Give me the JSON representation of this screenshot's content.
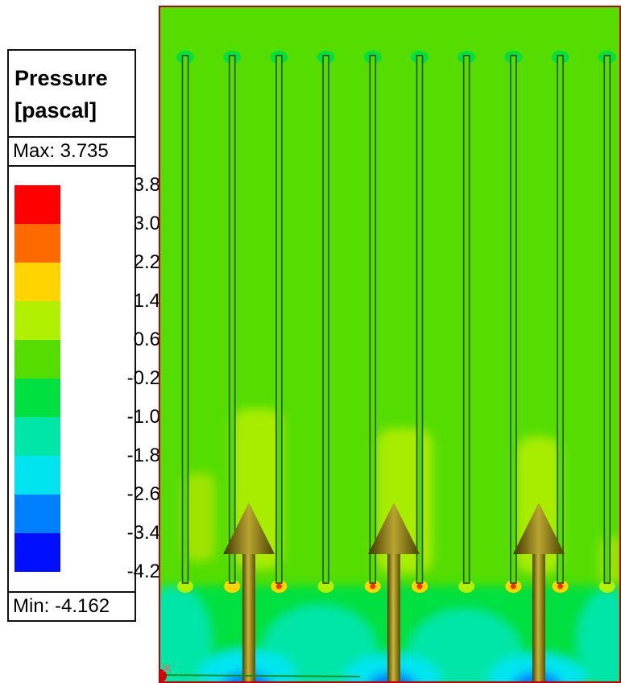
{
  "legend": {
    "title_line1": "Pressure",
    "title_line2": "[pascal]",
    "max_label": "Max: 3.735",
    "min_label": "Min: -4.162",
    "ticks": [
      "3.8",
      "3.0",
      "2.2",
      "1.4",
      "0.6",
      "-0.2",
      "-1.0",
      "-1.8",
      "-2.6",
      "-3.4",
      "-4.2"
    ],
    "band_colors": [
      "#ff0000",
      "#ff6a00",
      "#ffd400",
      "#b0f000",
      "#55dd00",
      "#00e040",
      "#00e6a8",
      "#00e4f0",
      "#0080ff",
      "#0010ff"
    ]
  },
  "plot": {
    "background_color": "#55dd00",
    "border_color": "#c00000",
    "fin_count": 10,
    "arrow_color": "#8a7a00"
  }
}
